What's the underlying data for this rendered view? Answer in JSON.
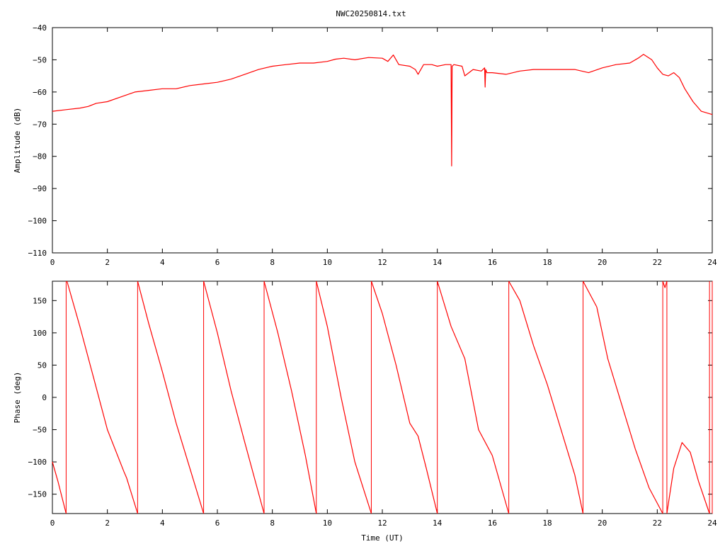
{
  "title": "NWC20250814.txt",
  "chart_data": [
    {
      "type": "line",
      "ylabel": "Amplitude (dB)",
      "xlabel": "",
      "xlim": [
        0,
        24
      ],
      "ylim": [
        -110,
        -40
      ],
      "x_ticks": [
        0,
        2,
        4,
        6,
        8,
        10,
        12,
        14,
        16,
        18,
        20,
        22,
        24
      ],
      "y_ticks": [
        -110,
        -100,
        -90,
        -80,
        -70,
        -60,
        -50,
        -40
      ],
      "color": "#ff0000",
      "series": [
        {
          "x": [
            0,
            0.5,
            1.0,
            1.3,
            1.6,
            2.0,
            2.5,
            3.0,
            3.5,
            4.0,
            4.5,
            5.0,
            5.5,
            6.0,
            6.5,
            7.0,
            7.5,
            8.0,
            8.5,
            9.0,
            9.5,
            10.0,
            10.3,
            10.6,
            11.0,
            11.5,
            12.0,
            12.2,
            12.4,
            12.6,
            13.0,
            13.2,
            13.3,
            13.5,
            13.8,
            14.0,
            14.3,
            14.5,
            14.52,
            14.54,
            14.6,
            14.9,
            15.0,
            15.3,
            15.6,
            15.72,
            15.74,
            15.76,
            15.8,
            16.0,
            16.5,
            17.0,
            17.5,
            18.0,
            18.5,
            19.0,
            19.5,
            20.0,
            20.5,
            21.0,
            21.3,
            21.5,
            21.8,
            22.0,
            22.2,
            22.4,
            22.6,
            22.8,
            23.0,
            23.3,
            23.6,
            24.0
          ],
          "y": [
            -66,
            -65.5,
            -65,
            -64.5,
            -63.5,
            -63,
            -61.5,
            -60,
            -59.5,
            -59,
            -59,
            -58,
            -57.5,
            -57,
            -56,
            -54.5,
            -53,
            -52,
            -51.5,
            -51,
            -51,
            -50.5,
            -49.8,
            -49.5,
            -50,
            -49.3,
            -49.5,
            -50.5,
            -48.5,
            -51.5,
            -52,
            -53,
            -54.5,
            -51.5,
            -51.5,
            -52,
            -51.5,
            -51.5,
            -83,
            -52,
            -51.5,
            -52,
            -55,
            -53,
            -53.5,
            -52.5,
            -58.5,
            -53,
            -54,
            -54,
            -54.5,
            -53.5,
            -53,
            -53,
            -53,
            -53,
            -54,
            -52.5,
            -51.5,
            -51,
            -49.5,
            -48.3,
            -50,
            -52.5,
            -54.5,
            -55,
            -54,
            -55.5,
            -59,
            -63,
            -66,
            -67
          ]
        }
      ]
    },
    {
      "type": "line",
      "ylabel": "Phase (deg)",
      "xlabel": "Time (UT)",
      "xlim": [
        0,
        24
      ],
      "ylim": [
        -180,
        180
      ],
      "x_ticks": [
        0,
        2,
        4,
        6,
        8,
        10,
        12,
        14,
        16,
        18,
        20,
        22,
        24
      ],
      "y_ticks": [
        -150,
        -100,
        -50,
        0,
        50,
        100,
        150
      ],
      "color": "#ff0000",
      "series": [
        {
          "x": [
            0,
            0.2,
            0.5
          ],
          "y": [
            -100,
            -130,
            -180
          ]
        },
        {
          "x": [
            0.53,
            1.0,
            1.5,
            2.0,
            2.6,
            2.7,
            3.1
          ],
          "y": [
            180,
            110,
            30,
            -50,
            -115,
            -125,
            -180
          ]
        },
        {
          "x": [
            3.1,
            3.5,
            4.0,
            4.5,
            5.0,
            5.5
          ],
          "y": [
            180,
            115,
            40,
            -40,
            -110,
            -180
          ]
        },
        {
          "x": [
            5.5,
            6.0,
            6.5,
            7.0,
            7.7
          ],
          "y": [
            180,
            100,
            10,
            -70,
            -180
          ]
        },
        {
          "x": [
            7.7,
            8.2,
            8.7,
            9.2,
            9.6
          ],
          "y": [
            180,
            100,
            10,
            -90,
            -180
          ]
        },
        {
          "x": [
            9.6,
            10.0,
            10.5,
            11.0,
            11.6
          ],
          "y": [
            180,
            110,
            0,
            -100,
            -180
          ]
        },
        {
          "x": [
            11.6,
            12.0,
            12.5,
            13.0,
            13.3,
            13.6,
            14.0
          ],
          "y": [
            180,
            130,
            50,
            -40,
            -60,
            -110,
            -180
          ]
        },
        {
          "x": [
            14.0,
            14.5,
            15.0,
            15.5,
            16.0,
            16.6
          ],
          "y": [
            180,
            110,
            60,
            -50,
            -90,
            -180
          ]
        },
        {
          "x": [
            16.6,
            17.0,
            17.5,
            18.0,
            18.5,
            19.0,
            19.3
          ],
          "y": [
            180,
            150,
            80,
            20,
            -50,
            -120,
            -180
          ]
        },
        {
          "x": [
            19.3,
            19.8,
            20.2,
            20.7,
            21.2,
            21.7,
            22.2
          ],
          "y": [
            180,
            140,
            60,
            -10,
            -80,
            -140,
            -180
          ]
        },
        {
          "x": [
            22.2,
            22.28,
            22.35
          ],
          "y": [
            180,
            170,
            180
          ]
        },
        {
          "x": [
            22.35,
            22.6,
            22.9,
            23.2,
            23.5,
            23.9
          ],
          "y": [
            -180,
            -110,
            -70,
            -85,
            -130,
            -180
          ]
        }
      ],
      "wraps": [
        0.5,
        3.1,
        5.5,
        7.7,
        9.6,
        11.6,
        14.0,
        16.6,
        19.3,
        22.2,
        22.35,
        23.9,
        24.0
      ]
    }
  ]
}
